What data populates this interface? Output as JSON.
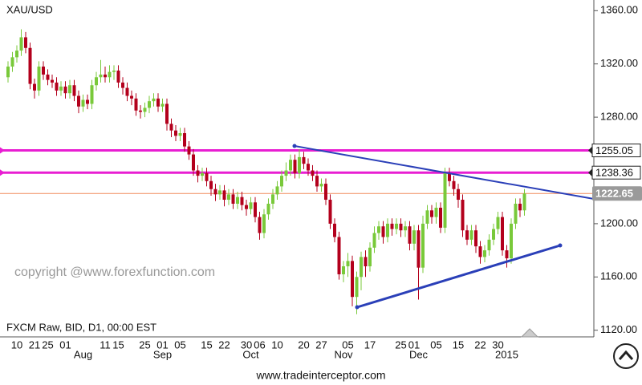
{
  "chart_data": {
    "type": "candlestick",
    "title": "XAU/USD",
    "watermark": "copyright @www.forexfunction.com",
    "source_note": "FXCM Raw, BID, D1, 00:00 EST",
    "footer": "www.tradeinterceptor.com",
    "up_color": "#79c93a",
    "down_color": "#b3001c",
    "categories": [
      null,
      null,
      "10",
      null,
      null,
      null,
      "21",
      null,
      null,
      "25",
      null,
      null,
      null,
      "01",
      null,
      null,
      null,
      null,
      null,
      null,
      null,
      null,
      "11",
      null,
      null,
      "15",
      null,
      null,
      null,
      null,
      null,
      "25",
      null,
      null,
      null,
      "01",
      null,
      null,
      null,
      "05",
      null,
      null,
      null,
      null,
      null,
      "15",
      null,
      null,
      null,
      "22",
      null,
      null,
      null,
      null,
      "30",
      null,
      null,
      "06",
      null,
      null,
      null,
      "10",
      null,
      null,
      null,
      null,
      null,
      "20",
      null,
      null,
      null,
      "27",
      null,
      null,
      null,
      null,
      null,
      "05",
      null,
      null,
      null,
      null,
      "17",
      null,
      null,
      null,
      null,
      null,
      null,
      "25",
      null,
      null,
      "01",
      null,
      null,
      null,
      null,
      "05",
      null,
      null,
      null,
      null,
      "15",
      null,
      null,
      null,
      null,
      "22",
      null,
      null,
      null,
      "30",
      null,
      null,
      null,
      null,
      null,
      null
    ],
    "months": [
      null,
      null,
      null,
      null,
      null,
      null,
      null,
      null,
      null,
      null,
      null,
      null,
      null,
      null,
      null,
      null,
      null,
      "Aug",
      null,
      null,
      null,
      null,
      null,
      null,
      null,
      null,
      null,
      null,
      null,
      null,
      null,
      null,
      null,
      null,
      null,
      "Sep",
      null,
      null,
      null,
      null,
      null,
      null,
      null,
      null,
      null,
      null,
      null,
      null,
      null,
      null,
      null,
      null,
      null,
      null,
      null,
      "Oct",
      null,
      null,
      null,
      null,
      null,
      null,
      null,
      null,
      null,
      null,
      null,
      null,
      null,
      null,
      null,
      null,
      null,
      null,
      null,
      null,
      "Nov",
      null,
      null,
      null,
      null,
      null,
      null,
      null,
      null,
      null,
      null,
      null,
      null,
      null,
      null,
      null,
      null,
      "Dec",
      null,
      null,
      null,
      null,
      null,
      null,
      null,
      null,
      null,
      null,
      null,
      null,
      null,
      null,
      null,
      null,
      null,
      null,
      null,
      "2015",
      null,
      null,
      null,
      null
    ],
    "open": [
      1310,
      1318,
      1325,
      1330,
      1340,
      1332,
      1305,
      1300,
      1318,
      1312,
      1308,
      1306,
      1300,
      1303,
      1298,
      1304,
      1296,
      1288,
      1293,
      1290,
      1304,
      1310,
      1312,
      1310,
      1314,
      1315,
      1306,
      1302,
      1296,
      1294,
      1285,
      1284,
      1287,
      1292,
      1294,
      1288,
      1290,
      1275,
      1270,
      1266,
      1268,
      1258,
      1252,
      1240,
      1236,
      1238,
      1232,
      1226,
      1222,
      1225,
      1218,
      1222,
      1215,
      1220,
      1214,
      1211,
      1216,
      1205,
      1193,
      1207,
      1215,
      1222,
      1228,
      1236,
      1240,
      1248,
      1238,
      1250,
      1245,
      1240,
      1236,
      1228,
      1230,
      1218,
      1200,
      1190,
      1162,
      1168,
      1172,
      1145,
      1160,
      1175,
      1168,
      1182,
      1193,
      1198,
      1190,
      1200,
      1196,
      1200,
      1195,
      1198,
      1185,
      1195,
      1167,
      1200,
      1210,
      1205,
      1212,
      1197,
      1238,
      1232,
      1226,
      1218,
      1195,
      1188,
      1195,
      1183,
      1175,
      1180,
      1188,
      1196,
      1205,
      1180,
      1174,
      1200,
      1215,
      1210
    ],
    "high": [
      1322,
      1329,
      1334,
      1346,
      1344,
      1336,
      1309,
      1322,
      1322,
      1316,
      1312,
      1310,
      1307,
      1307,
      1308,
      1308,
      1300,
      1297,
      1297,
      1308,
      1314,
      1323,
      1318,
      1319,
      1319,
      1319,
      1310,
      1306,
      1300,
      1298,
      1289,
      1291,
      1296,
      1298,
      1298,
      1294,
      1294,
      1279,
      1274,
      1272,
      1272,
      1262,
      1256,
      1244,
      1242,
      1242,
      1236,
      1230,
      1229,
      1229,
      1226,
      1226,
      1224,
      1224,
      1218,
      1220,
      1220,
      1209,
      1211,
      1219,
      1226,
      1232,
      1240,
      1246,
      1252,
      1252,
      1256,
      1254,
      1249,
      1244,
      1240,
      1234,
      1234,
      1222,
      1204,
      1194,
      1172,
      1178,
      1176,
      1164,
      1179,
      1180,
      1186,
      1198,
      1202,
      1202,
      1204,
      1204,
      1204,
      1204,
      1202,
      1202,
      1199,
      1199,
      1206,
      1214,
      1214,
      1216,
      1216,
      1242,
      1242,
      1236,
      1230,
      1222,
      1199,
      1199,
      1199,
      1187,
      1184,
      1192,
      1200,
      1209,
      1209,
      1184,
      1204,
      1219,
      1219,
      1226
    ],
    "low": [
      1306,
      1314,
      1321,
      1326,
      1328,
      1301,
      1294,
      1296,
      1308,
      1304,
      1302,
      1296,
      1296,
      1294,
      1294,
      1292,
      1283,
      1284,
      1286,
      1286,
      1300,
      1306,
      1306,
      1306,
      1308,
      1302,
      1297,
      1292,
      1289,
      1281,
      1279,
      1280,
      1283,
      1288,
      1284,
      1284,
      1270,
      1265,
      1262,
      1262,
      1254,
      1248,
      1236,
      1231,
      1232,
      1228,
      1221,
      1217,
      1218,
      1213,
      1214,
      1211,
      1211,
      1210,
      1206,
      1207,
      1201,
      1188,
      1189,
      1203,
      1211,
      1218,
      1224,
      1232,
      1236,
      1234,
      1234,
      1241,
      1236,
      1232,
      1224,
      1224,
      1214,
      1196,
      1186,
      1158,
      1156,
      1160,
      1138,
      1132,
      1150,
      1160,
      1164,
      1178,
      1188,
      1185,
      1186,
      1191,
      1192,
      1190,
      1190,
      1180,
      1180,
      1143,
      1163,
      1196,
      1200,
      1200,
      1193,
      1193,
      1228,
      1221,
      1212,
      1190,
      1184,
      1184,
      1178,
      1170,
      1171,
      1176,
      1184,
      1192,
      1176,
      1167,
      1170,
      1196,
      1205,
      1206
    ],
    "close": [
      1318,
      1325,
      1330,
      1340,
      1332,
      1305,
      1300,
      1318,
      1312,
      1308,
      1306,
      1300,
      1303,
      1298,
      1304,
      1296,
      1288,
      1293,
      1290,
      1304,
      1310,
      1312,
      1310,
      1314,
      1315,
      1306,
      1302,
      1296,
      1294,
      1285,
      1284,
      1287,
      1292,
      1294,
      1288,
      1290,
      1275,
      1270,
      1266,
      1268,
      1258,
      1252,
      1240,
      1236,
      1238,
      1232,
      1226,
      1222,
      1225,
      1218,
      1222,
      1215,
      1220,
      1214,
      1211,
      1216,
      1205,
      1193,
      1207,
      1215,
      1222,
      1228,
      1236,
      1240,
      1248,
      1238,
      1250,
      1245,
      1240,
      1236,
      1228,
      1230,
      1218,
      1200,
      1190,
      1162,
      1168,
      1172,
      1145,
      1160,
      1175,
      1168,
      1182,
      1193,
      1198,
      1190,
      1200,
      1196,
      1200,
      1195,
      1198,
      1185,
      1195,
      1167,
      1200,
      1210,
      1205,
      1212,
      1197,
      1238,
      1232,
      1226,
      1218,
      1195,
      1188,
      1195,
      1183,
      1175,
      1180,
      1188,
      1196,
      1205,
      1180,
      1174,
      1200,
      1215,
      1210,
      1222.65
    ],
    "levels": [
      {
        "value": 1255.05,
        "color": "#e81ed2"
      },
      {
        "value": 1238.36,
        "color": "#e81ed2"
      }
    ],
    "last_price": {
      "value": 1222.65,
      "color": "#f08a5a"
    },
    "ylim": [
      1115,
      1368
    ],
    "yticks": [
      {
        "value": 1120,
        "label": "1120.00"
      },
      {
        "value": 1160,
        "label": "1160.00"
      },
      {
        "value": 1200,
        "label": "1200.00"
      },
      {
        "value": 1240,
        "label": "1240.00"
      },
      {
        "value": 1280,
        "label": "1280.00"
      },
      {
        "value": 1320,
        "label": "1320.00"
      },
      {
        "value": 1360,
        "label": "1360.00"
      }
    ]
  }
}
